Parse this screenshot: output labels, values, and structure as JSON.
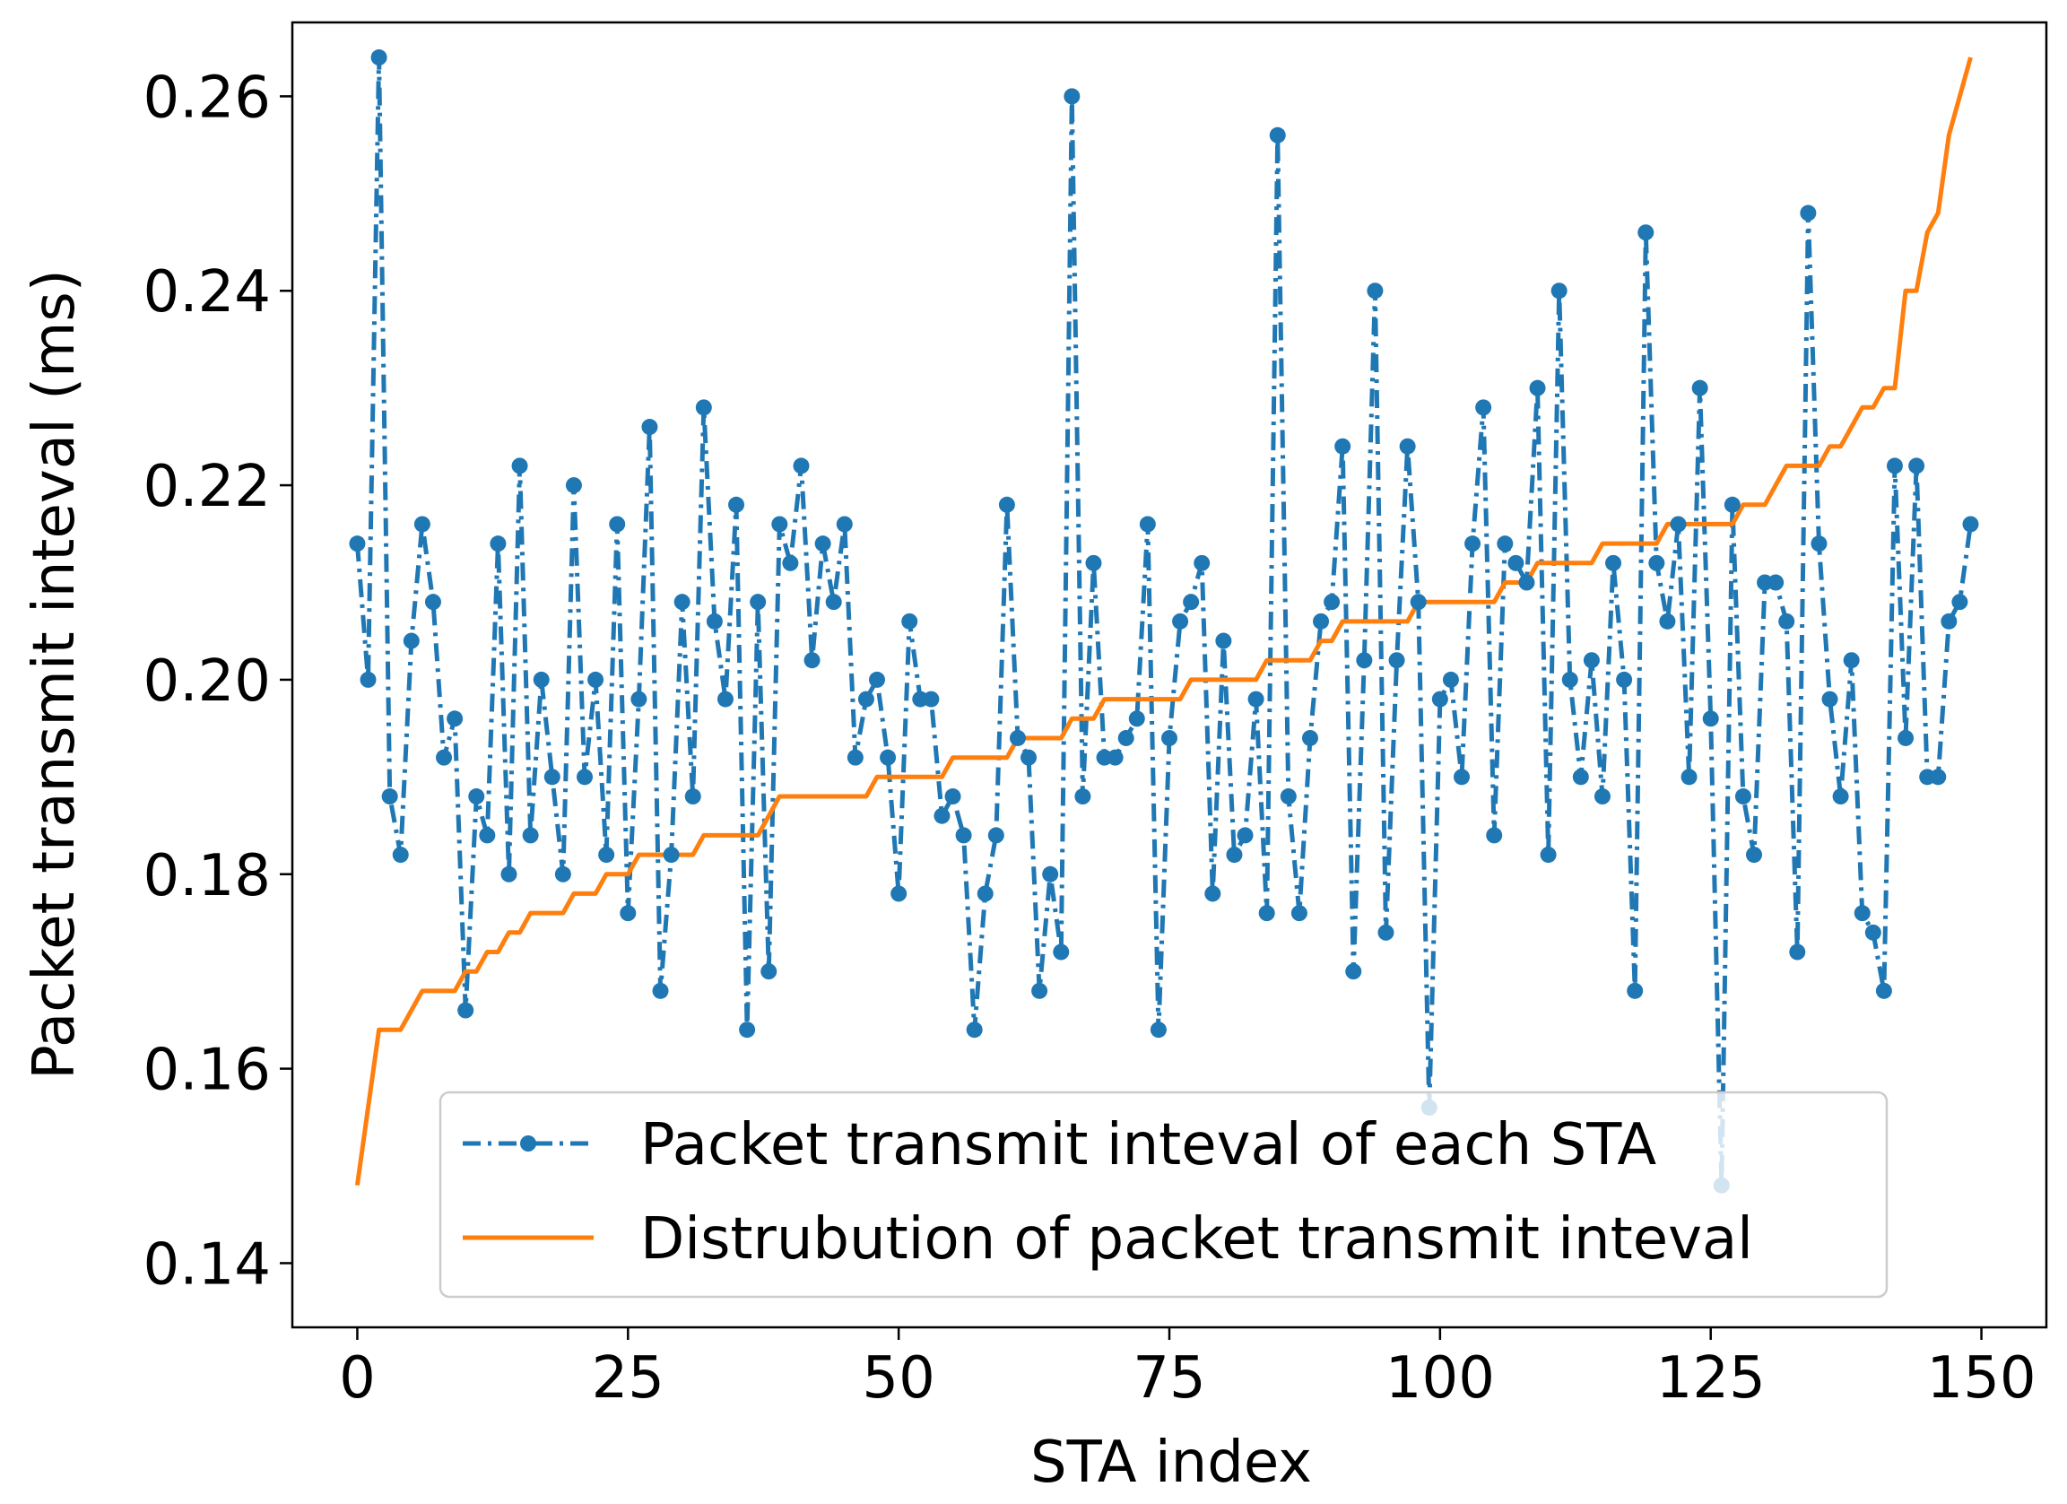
{
  "chart_data": {
    "type": "line",
    "xlabel": "STA index",
    "ylabel": "Packet transmit inteval (ms)",
    "xlim": [
      -6,
      156
    ],
    "ylim": [
      0.1334,
      0.2676
    ],
    "xticks": [
      0,
      25,
      50,
      75,
      100,
      125,
      150
    ],
    "xtick_labels": [
      "0",
      "25",
      "50",
      "75",
      "100",
      "125",
      "150"
    ],
    "yticks": [
      0.14,
      0.16,
      0.18,
      0.2,
      0.22,
      0.24,
      0.26
    ],
    "ytick_labels": [
      "0.14",
      "0.16",
      "0.18",
      "0.20",
      "0.22",
      "0.24",
      "0.26"
    ],
    "grid": false,
    "legend_position": "bottom-center",
    "series": [
      {
        "name": "Packet transmit inteval of each STA",
        "style": "dash-dot with circle markers",
        "color": "#1f77b4",
        "x_start": 0,
        "values": [
          0.214,
          0.2,
          0.264,
          0.188,
          0.182,
          0.204,
          0.216,
          0.208,
          0.192,
          0.196,
          0.166,
          0.188,
          0.184,
          0.214,
          0.18,
          0.222,
          0.184,
          0.2,
          0.19,
          0.18,
          0.22,
          0.19,
          0.2,
          0.182,
          0.216,
          0.176,
          0.198,
          0.226,
          0.168,
          0.182,
          0.208,
          0.188,
          0.228,
          0.206,
          0.198,
          0.218,
          0.164,
          0.208,
          0.17,
          0.216,
          0.212,
          0.222,
          0.202,
          0.214,
          0.208,
          0.216,
          0.192,
          0.198,
          0.2,
          0.192,
          0.178,
          0.206,
          0.198,
          0.198,
          0.186,
          0.188,
          0.184,
          0.164,
          0.178,
          0.184,
          0.218,
          0.194,
          0.192,
          0.168,
          0.18,
          0.172,
          0.26,
          0.188,
          0.212,
          0.192,
          0.192,
          0.194,
          0.196,
          0.216,
          0.164,
          0.194,
          0.206,
          0.208,
          0.212,
          0.178,
          0.204,
          0.182,
          0.184,
          0.198,
          0.176,
          0.256,
          0.188,
          0.176,
          0.194,
          0.206,
          0.208,
          0.224,
          0.17,
          0.202,
          0.24,
          0.174,
          0.202,
          0.224,
          0.208,
          0.156,
          0.198,
          0.2,
          0.19,
          0.214,
          0.228,
          0.184,
          0.214,
          0.212,
          0.21,
          0.23,
          0.182,
          0.24,
          0.2,
          0.19,
          0.202,
          0.188,
          0.212,
          0.2,
          0.168,
          0.246,
          0.212,
          0.206,
          0.216,
          0.19,
          0.23,
          0.196,
          0.148,
          0.218,
          0.188,
          0.182,
          0.21,
          0.21,
          0.206,
          0.172,
          0.248,
          0.214,
          0.198,
          0.188,
          0.202,
          0.176,
          0.174,
          0.168,
          0.222,
          0.194,
          0.222,
          0.19,
          0.19,
          0.206,
          0.208,
          0.216
        ]
      },
      {
        "name": "Distrubution of packet transmit inteval",
        "style": "solid",
        "color": "#ff7f0e",
        "x_start": 0,
        "values": "sorted ascending values of the first series"
      }
    ]
  }
}
